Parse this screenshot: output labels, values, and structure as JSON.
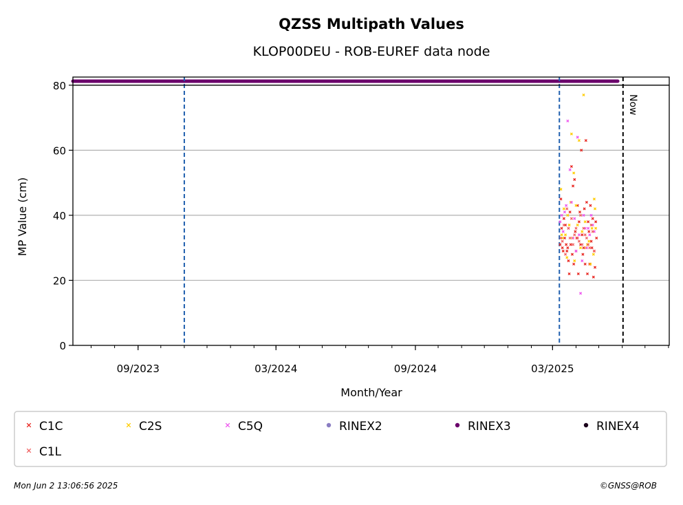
{
  "chart_data": {
    "type": "scatter",
    "title": "QZSS Multipath Values",
    "subtitle": "KLOP00DEU - ROB-EUREF data node",
    "xlabel": "Month/Year",
    "ylabel": "MP Value (cm)",
    "ylim": [
      0,
      80
    ],
    "xlim": [
      "2023-06-07",
      "2025-08-02"
    ],
    "yticks": [
      0,
      20,
      40,
      60,
      80
    ],
    "xticks": [
      {
        "date": "2023-09-01",
        "label": "09/2023"
      },
      {
        "date": "2024-03-01",
        "label": "03/2024"
      },
      {
        "date": "2024-09-01",
        "label": "09/2024"
      },
      {
        "date": "2025-03-01",
        "label": "03/2025"
      }
    ],
    "grid": "horizontal",
    "vlines": [
      {
        "date": "2023-11-01",
        "style": "dashed",
        "color": "#1f5fae"
      },
      {
        "date": "2025-03-10",
        "style": "dashed",
        "color": "#1f5fae"
      },
      {
        "date": "2025-06-02",
        "style": "dashed",
        "color": "#000000",
        "label": "Now"
      }
    ],
    "rinex_band": {
      "series": "RINEX3",
      "start": "2023-06-07",
      "end": "2025-05-26",
      "color": "#6b006b"
    },
    "series": [
      {
        "name": "C1C",
        "color": "#e8251f",
        "marker": "x",
        "points": [
          [
            "2025-03-11",
            31
          ],
          [
            "2025-03-12",
            45
          ],
          [
            "2025-03-13",
            36
          ],
          [
            "2025-03-14",
            30
          ],
          [
            "2025-03-15",
            29
          ],
          [
            "2025-03-16",
            39
          ],
          [
            "2025-03-17",
            33
          ],
          [
            "2025-03-18",
            37
          ],
          [
            "2025-03-19",
            31
          ],
          [
            "2025-03-20",
            29
          ],
          [
            "2025-03-21",
            30
          ],
          [
            "2025-03-22",
            26
          ],
          [
            "2025-03-23",
            22
          ],
          [
            "2025-03-24",
            41
          ],
          [
            "2025-03-25",
            31
          ],
          [
            "2025-03-26",
            55
          ],
          [
            "2025-03-27",
            28
          ],
          [
            "2025-03-28",
            49
          ],
          [
            "2025-03-29",
            25
          ],
          [
            "2025-03-30",
            51
          ],
          [
            "2025-03-31",
            35
          ],
          [
            "2025-04-01",
            29
          ],
          [
            "2025-04-02",
            33
          ],
          [
            "2025-04-03",
            43
          ],
          [
            "2025-04-04",
            22
          ],
          [
            "2025-04-05",
            38
          ],
          [
            "2025-04-06",
            41
          ],
          [
            "2025-04-07",
            31
          ],
          [
            "2025-04-08",
            60
          ],
          [
            "2025-04-09",
            34
          ],
          [
            "2025-04-10",
            28
          ],
          [
            "2025-04-11",
            30
          ],
          [
            "2025-04-12",
            42
          ],
          [
            "2025-04-13",
            25
          ],
          [
            "2025-04-14",
            63
          ],
          [
            "2025-04-15",
            44
          ],
          [
            "2025-04-16",
            22
          ],
          [
            "2025-04-17",
            38
          ],
          [
            "2025-04-18",
            35
          ],
          [
            "2025-04-19",
            25
          ],
          [
            "2025-04-20",
            43
          ],
          [
            "2025-04-21",
            32
          ],
          [
            "2025-04-22",
            30
          ],
          [
            "2025-04-23",
            39
          ],
          [
            "2025-04-24",
            21
          ],
          [
            "2025-04-25",
            29
          ],
          [
            "2025-04-26",
            24
          ],
          [
            "2025-04-27",
            38
          ],
          [
            "2025-04-28",
            33
          ]
        ]
      },
      {
        "name": "C2S",
        "color": "#ffcc00",
        "marker": "x",
        "points": [
          [
            "2025-03-12",
            48
          ],
          [
            "2025-03-13",
            34
          ],
          [
            "2025-03-14",
            33
          ],
          [
            "2025-03-16",
            42
          ],
          [
            "2025-03-18",
            34
          ],
          [
            "2025-03-20",
            27
          ],
          [
            "2025-03-21",
            40
          ],
          [
            "2025-03-23",
            37
          ],
          [
            "2025-03-25",
            44
          ],
          [
            "2025-03-26",
            65
          ],
          [
            "2025-03-27",
            33
          ],
          [
            "2025-03-29",
            53
          ],
          [
            "2025-03-30",
            26
          ],
          [
            "2025-04-01",
            43
          ],
          [
            "2025-04-03",
            37
          ],
          [
            "2025-04-05",
            63
          ],
          [
            "2025-04-07",
            30
          ],
          [
            "2025-04-09",
            35
          ],
          [
            "2025-04-11",
            77
          ],
          [
            "2025-04-13",
            38
          ],
          [
            "2025-04-14",
            30
          ],
          [
            "2025-04-16",
            31
          ],
          [
            "2025-04-18",
            32
          ],
          [
            "2025-04-20",
            25
          ],
          [
            "2025-04-22",
            36
          ],
          [
            "2025-04-24",
            28
          ],
          [
            "2025-04-25",
            45
          ],
          [
            "2025-04-26",
            42
          ],
          [
            "2025-04-27",
            36
          ]
        ]
      },
      {
        "name": "C5Q",
        "color": "#ee55ee",
        "marker": "x",
        "points": [
          [
            "2025-03-11",
            38
          ],
          [
            "2025-03-13",
            40
          ],
          [
            "2025-03-15",
            35
          ],
          [
            "2025-03-17",
            41
          ],
          [
            "2025-03-19",
            43
          ],
          [
            "2025-03-21",
            69
          ],
          [
            "2025-03-22",
            36
          ],
          [
            "2025-03-24",
            54
          ],
          [
            "2025-03-26",
            44
          ],
          [
            "2025-03-28",
            33
          ],
          [
            "2025-03-30",
            39
          ],
          [
            "2025-04-01",
            29
          ],
          [
            "2025-04-03",
            64
          ],
          [
            "2025-04-05",
            34
          ],
          [
            "2025-04-07",
            16
          ],
          [
            "2025-04-09",
            26
          ],
          [
            "2025-04-11",
            40
          ],
          [
            "2025-04-13",
            36
          ],
          [
            "2025-04-15",
            30
          ],
          [
            "2025-04-17",
            36
          ],
          [
            "2025-04-19",
            34
          ],
          [
            "2025-04-21",
            40
          ],
          [
            "2025-04-23",
            37
          ],
          [
            "2025-04-25",
            35
          ]
        ]
      },
      {
        "name": "C1L",
        "color": "#f06060",
        "marker": "x",
        "points": [
          [
            "2025-03-12",
            33
          ],
          [
            "2025-03-14",
            32
          ],
          [
            "2025-03-16",
            37
          ],
          [
            "2025-03-18",
            28
          ],
          [
            "2025-03-20",
            42
          ],
          [
            "2025-03-22",
            36
          ],
          [
            "2025-03-24",
            33
          ],
          [
            "2025-03-26",
            39
          ],
          [
            "2025-03-28",
            31
          ],
          [
            "2025-03-30",
            34
          ],
          [
            "2025-04-01",
            36
          ],
          [
            "2025-04-03",
            33
          ],
          [
            "2025-04-05",
            32
          ],
          [
            "2025-04-07",
            40
          ],
          [
            "2025-04-09",
            31
          ],
          [
            "2025-04-11",
            36
          ],
          [
            "2025-04-13",
            34
          ],
          [
            "2025-04-15",
            33
          ],
          [
            "2025-04-17",
            31
          ],
          [
            "2025-04-19",
            30
          ],
          [
            "2025-04-21",
            37
          ],
          [
            "2025-04-23",
            35
          ],
          [
            "2025-04-25",
            29
          ]
        ]
      }
    ],
    "legend": {
      "placement": "below",
      "entries": [
        {
          "name": "C1C",
          "color": "#e8251f",
          "marker": "x"
        },
        {
          "name": "C2S",
          "color": "#ffcc00",
          "marker": "x"
        },
        {
          "name": "C5Q",
          "color": "#ee55ee",
          "marker": "x"
        },
        {
          "name": "RINEX2",
          "color": "#8a7dc2",
          "marker": "dot"
        },
        {
          "name": "RINEX3",
          "color": "#6b006b",
          "marker": "dot"
        },
        {
          "name": "RINEX4",
          "color": "#1a001a",
          "marker": "dot"
        },
        {
          "name": "C1L",
          "color": "#f06060",
          "marker": "x"
        }
      ]
    }
  },
  "footer": {
    "timestamp": "Mon Jun  2 13:06:56 2025",
    "credit": "©GNSS@ROB"
  }
}
